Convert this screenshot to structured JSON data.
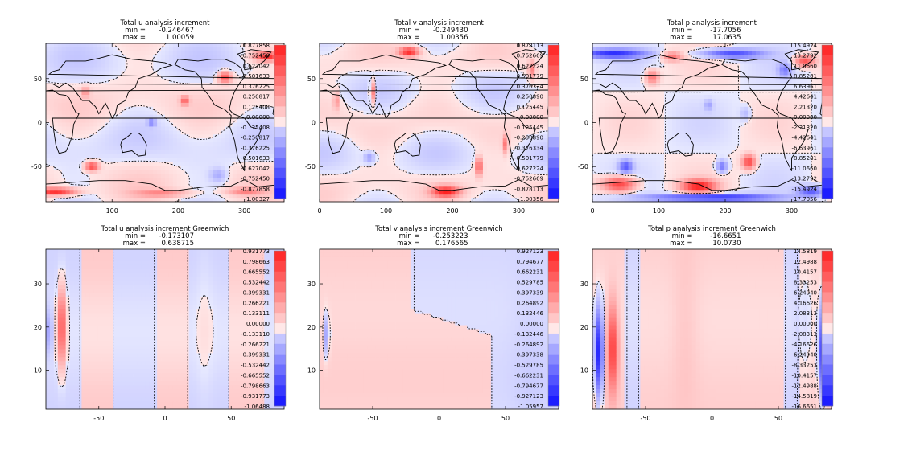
{
  "colors": {
    "positive": "#ff2020",
    "negative": "#1010ff",
    "neutral": "#ffffff",
    "coastline": "#000000",
    "contour": "#000000"
  },
  "panel_labels": {
    "min_label": "min =",
    "max_label": "max ="
  },
  "chart_data": [
    {
      "type": "heatmap",
      "title": "Total u analysis increment",
      "min": "-0.246467",
      "max": "1.00059",
      "xticks": [
        "100",
        "200",
        "300"
      ],
      "yticks": [
        "50",
        "0",
        "-50"
      ],
      "xlim": [
        0,
        360
      ],
      "ylim": [
        -90,
        90
      ],
      "colorbar": [
        "0.877858",
        "0.752450",
        "0.627042",
        "0.501633",
        "0.376225",
        "0.250817",
        "0.125408",
        "0.00000",
        "-0.125408",
        "-0.250817",
        "-0.376225",
        "-0.501633",
        "-0.627042",
        "-0.752450",
        "-0.877858",
        "-1.00327"
      ],
      "map": true
    },
    {
      "type": "heatmap",
      "title": "Total v analysis increment",
      "min": "-0.249430",
      "max": "1.00356",
      "xticks": [
        "0",
        "100",
        "200",
        "300"
      ],
      "yticks": [
        "50",
        "0",
        "-50"
      ],
      "xlim": [
        0,
        360
      ],
      "ylim": [
        -90,
        90
      ],
      "colorbar": [
        "0.878113",
        "0.752669",
        "0.627224",
        "0.501779",
        "0.376334",
        "0.250890",
        "0.125445",
        "0.00000",
        "-0.125445",
        "-0.250890",
        "-0.376334",
        "-0.501779",
        "-0.627224",
        "-0.752669",
        "-0.878113",
        "-1.00356"
      ],
      "map": true
    },
    {
      "type": "heatmap",
      "title": "Total p analysis increment",
      "min": "-17.7056",
      "max": "17.0635",
      "xticks": [
        "0",
        "100",
        "200",
        "300"
      ],
      "yticks": [
        "50",
        "0",
        "-50"
      ],
      "xlim": [
        0,
        360
      ],
      "ylim": [
        -90,
        90
      ],
      "colorbar": [
        "15.4924",
        "13.2792",
        "11.0660",
        "8.85281",
        "6.63961",
        "4.42641",
        "2.21320",
        "0.00000",
        "-2.21320",
        "-4.42641",
        "-6.63961",
        "-8.85281",
        "-11.0660",
        "-13.2792",
        "-15.4924",
        "-17.7056"
      ],
      "map": true
    },
    {
      "type": "heatmap",
      "title": "Total u analysis increment Greenwich",
      "min": "-0.173107",
      "max": "0.638715",
      "xticks": [
        "-50",
        "0",
        "50"
      ],
      "yticks": [
        "30",
        "20",
        "10"
      ],
      "xlim": [
        -90,
        90
      ],
      "ylim": [
        1,
        38
      ],
      "colorbar": [
        "0.931773",
        "0.798663",
        "0.665552",
        "0.532442",
        "0.399331",
        "0.266221",
        "0.133111",
        "0.00000",
        "-0.133110",
        "-0.266221",
        "-0.399331",
        "-0.532442",
        "-0.665552",
        "-0.798663",
        "-0.931773",
        "-1.06488"
      ],
      "map": false
    },
    {
      "type": "heatmap",
      "title": "Total v analysis increment Greenwich",
      "min": "-0.253223",
      "max": "0.176565",
      "xticks": [
        "-50",
        "0",
        "50"
      ],
      "yticks": [
        "30",
        "20",
        "10"
      ],
      "xlim": [
        -90,
        90
      ],
      "ylim": [
        1,
        38
      ],
      "colorbar": [
        "0.927123",
        "0.794677",
        "0.662231",
        "0.529785",
        "0.397339",
        "0.264892",
        "0.132446",
        "0.00000",
        "-0.132446",
        "-0.264892",
        "-0.397338",
        "-0.529785",
        "-0.662231",
        "-0.794677",
        "-0.927123",
        "-1.05957"
      ],
      "map": false
    },
    {
      "type": "heatmap",
      "title": "Total p analysis increment Greenwich",
      "min": "-16.6651",
      "max": "10.0730",
      "xticks": [
        "-50",
        "0",
        "50"
      ],
      "yticks": [
        "30",
        "20",
        "10"
      ],
      "xlim": [
        -90,
        90
      ],
      "ylim": [
        1,
        38
      ],
      "colorbar": [
        "14.5819",
        "12.4988",
        "10.4157",
        "8.33253",
        "6.24940",
        "4.16626",
        "2.08313",
        "0.00000",
        "-2.08313",
        "-4.16626",
        "-6.24940",
        "-8.33253",
        "-10.4157",
        "-12.4988",
        "-14.5819",
        "-16.6651"
      ],
      "map": false
    }
  ]
}
